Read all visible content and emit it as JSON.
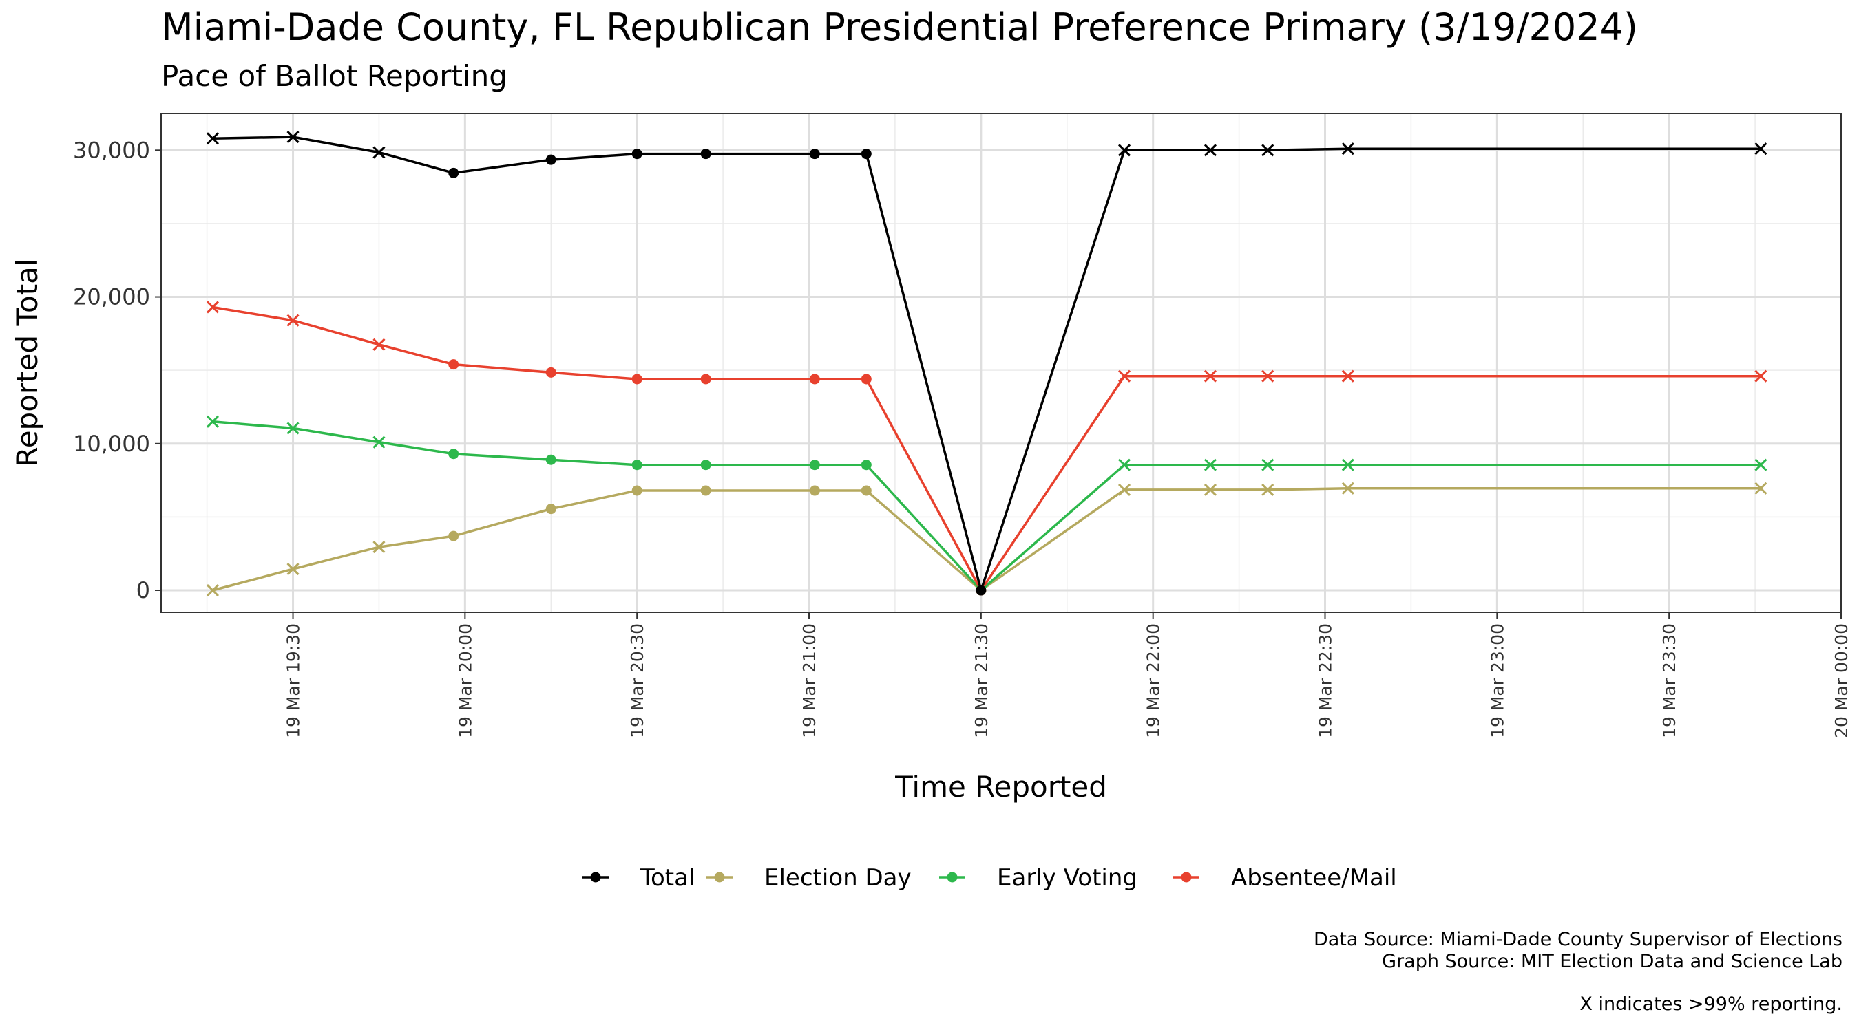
{
  "chart_data": {
    "type": "line",
    "title": "Miami-Dade County, FL Republican Presidential Preference Primary (3/19/2024)",
    "subtitle": "Pace of Ballot Reporting",
    "xlabel": "Time Reported",
    "ylabel": "Reported Total",
    "xlim": [
      "2024-03-19 19:07",
      "2024-03-20 00:00"
    ],
    "ylim": [
      -1500,
      32500
    ],
    "y_ticks": [
      0,
      10000,
      20000,
      30000
    ],
    "y_tick_labels": [
      "0",
      "10,000",
      "20,000",
      "30,000"
    ],
    "x_ticks": [
      "2024-03-19 19:30",
      "2024-03-19 20:00",
      "2024-03-19 20:30",
      "2024-03-19 21:00",
      "2024-03-19 21:30",
      "2024-03-19 22:00",
      "2024-03-19 22:30",
      "2024-03-19 23:00",
      "2024-03-19 23:30",
      "2024-03-20 00:00"
    ],
    "x_tick_labels": [
      "19 Mar 19:30",
      "19 Mar 20:00",
      "19 Mar 20:30",
      "19 Mar 21:00",
      "19 Mar 21:30",
      "19 Mar 22:00",
      "19 Mar 22:30",
      "19 Mar 23:00",
      "19 Mar 23:30",
      "20 Mar 00:00"
    ],
    "grid": true,
    "legend_position": "bottom",
    "x": [
      "2024-03-19 19:16",
      "2024-03-19 19:30",
      "2024-03-19 19:45",
      "2024-03-19 19:58",
      "2024-03-19 20:15",
      "2024-03-19 20:30",
      "2024-03-19 20:42",
      "2024-03-19 21:01",
      "2024-03-19 21:10",
      "2024-03-19 21:30",
      "2024-03-19 21:55",
      "2024-03-19 22:10",
      "2024-03-19 22:20",
      "2024-03-19 22:34",
      "2024-03-19 23:46"
    ],
    "over_99_reporting": [
      true,
      true,
      true,
      false,
      false,
      false,
      false,
      false,
      false,
      false,
      true,
      true,
      true,
      true,
      true
    ],
    "series": [
      {
        "name": "Total",
        "color": "#000000",
        "values": [
          30800,
          30900,
          29850,
          28450,
          29350,
          29750,
          29750,
          29750,
          29750,
          0,
          30000,
          30000,
          30000,
          30100,
          30100
        ]
      },
      {
        "name": "Election Day",
        "color": "#b5a95f",
        "values": [
          0,
          1450,
          2950,
          3700,
          5550,
          6800,
          6800,
          6800,
          6800,
          0,
          6850,
          6850,
          6850,
          6950,
          6950
        ]
      },
      {
        "name": "Early Voting",
        "color": "#2db84c",
        "values": [
          11500,
          11050,
          10100,
          9300,
          8900,
          8550,
          8550,
          8550,
          8550,
          0,
          8550,
          8550,
          8550,
          8550,
          8550
        ]
      },
      {
        "name": "Absentee/Mail",
        "color": "#e8412e",
        "values": [
          19300,
          18400,
          16750,
          15400,
          14850,
          14400,
          14400,
          14400,
          14400,
          0,
          14600,
          14600,
          14600,
          14600,
          14600
        ]
      }
    ]
  },
  "caption": {
    "data_source": "Data Source: Miami-Dade County Supervisor of Elections",
    "graph_source": "Graph Source: MIT Election Data and Science Lab",
    "note": "X indicates >99% reporting."
  }
}
